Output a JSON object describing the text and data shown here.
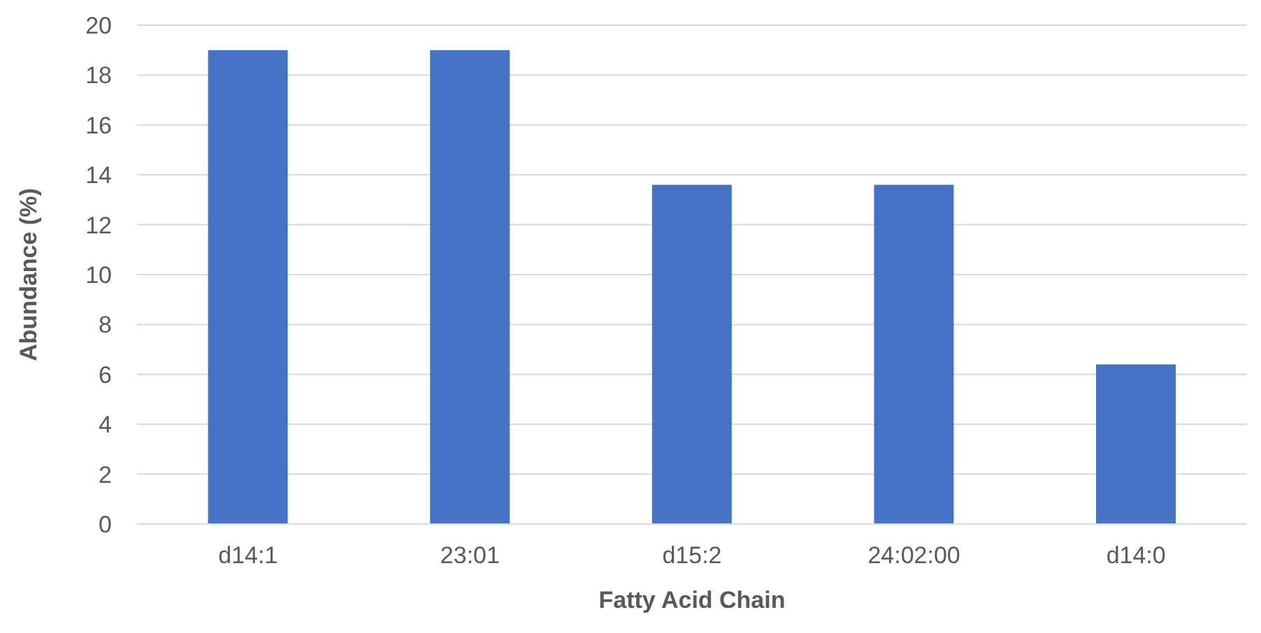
{
  "chart_data": {
    "type": "bar",
    "xlabel": "Fatty Acid Chain",
    "ylabel": "Abundance (%)",
    "categories": [
      "d14:1",
      "23:01",
      "d15:2",
      "24:02:00",
      "d14:0"
    ],
    "values": [
      19,
      19,
      13.6,
      13.6,
      6.4
    ],
    "color": "#4472c4",
    "ylim": [
      0,
      20
    ],
    "yticks": [
      0,
      2,
      4,
      6,
      8,
      10,
      12,
      14,
      16,
      18,
      20
    ],
    "grid": "y"
  }
}
